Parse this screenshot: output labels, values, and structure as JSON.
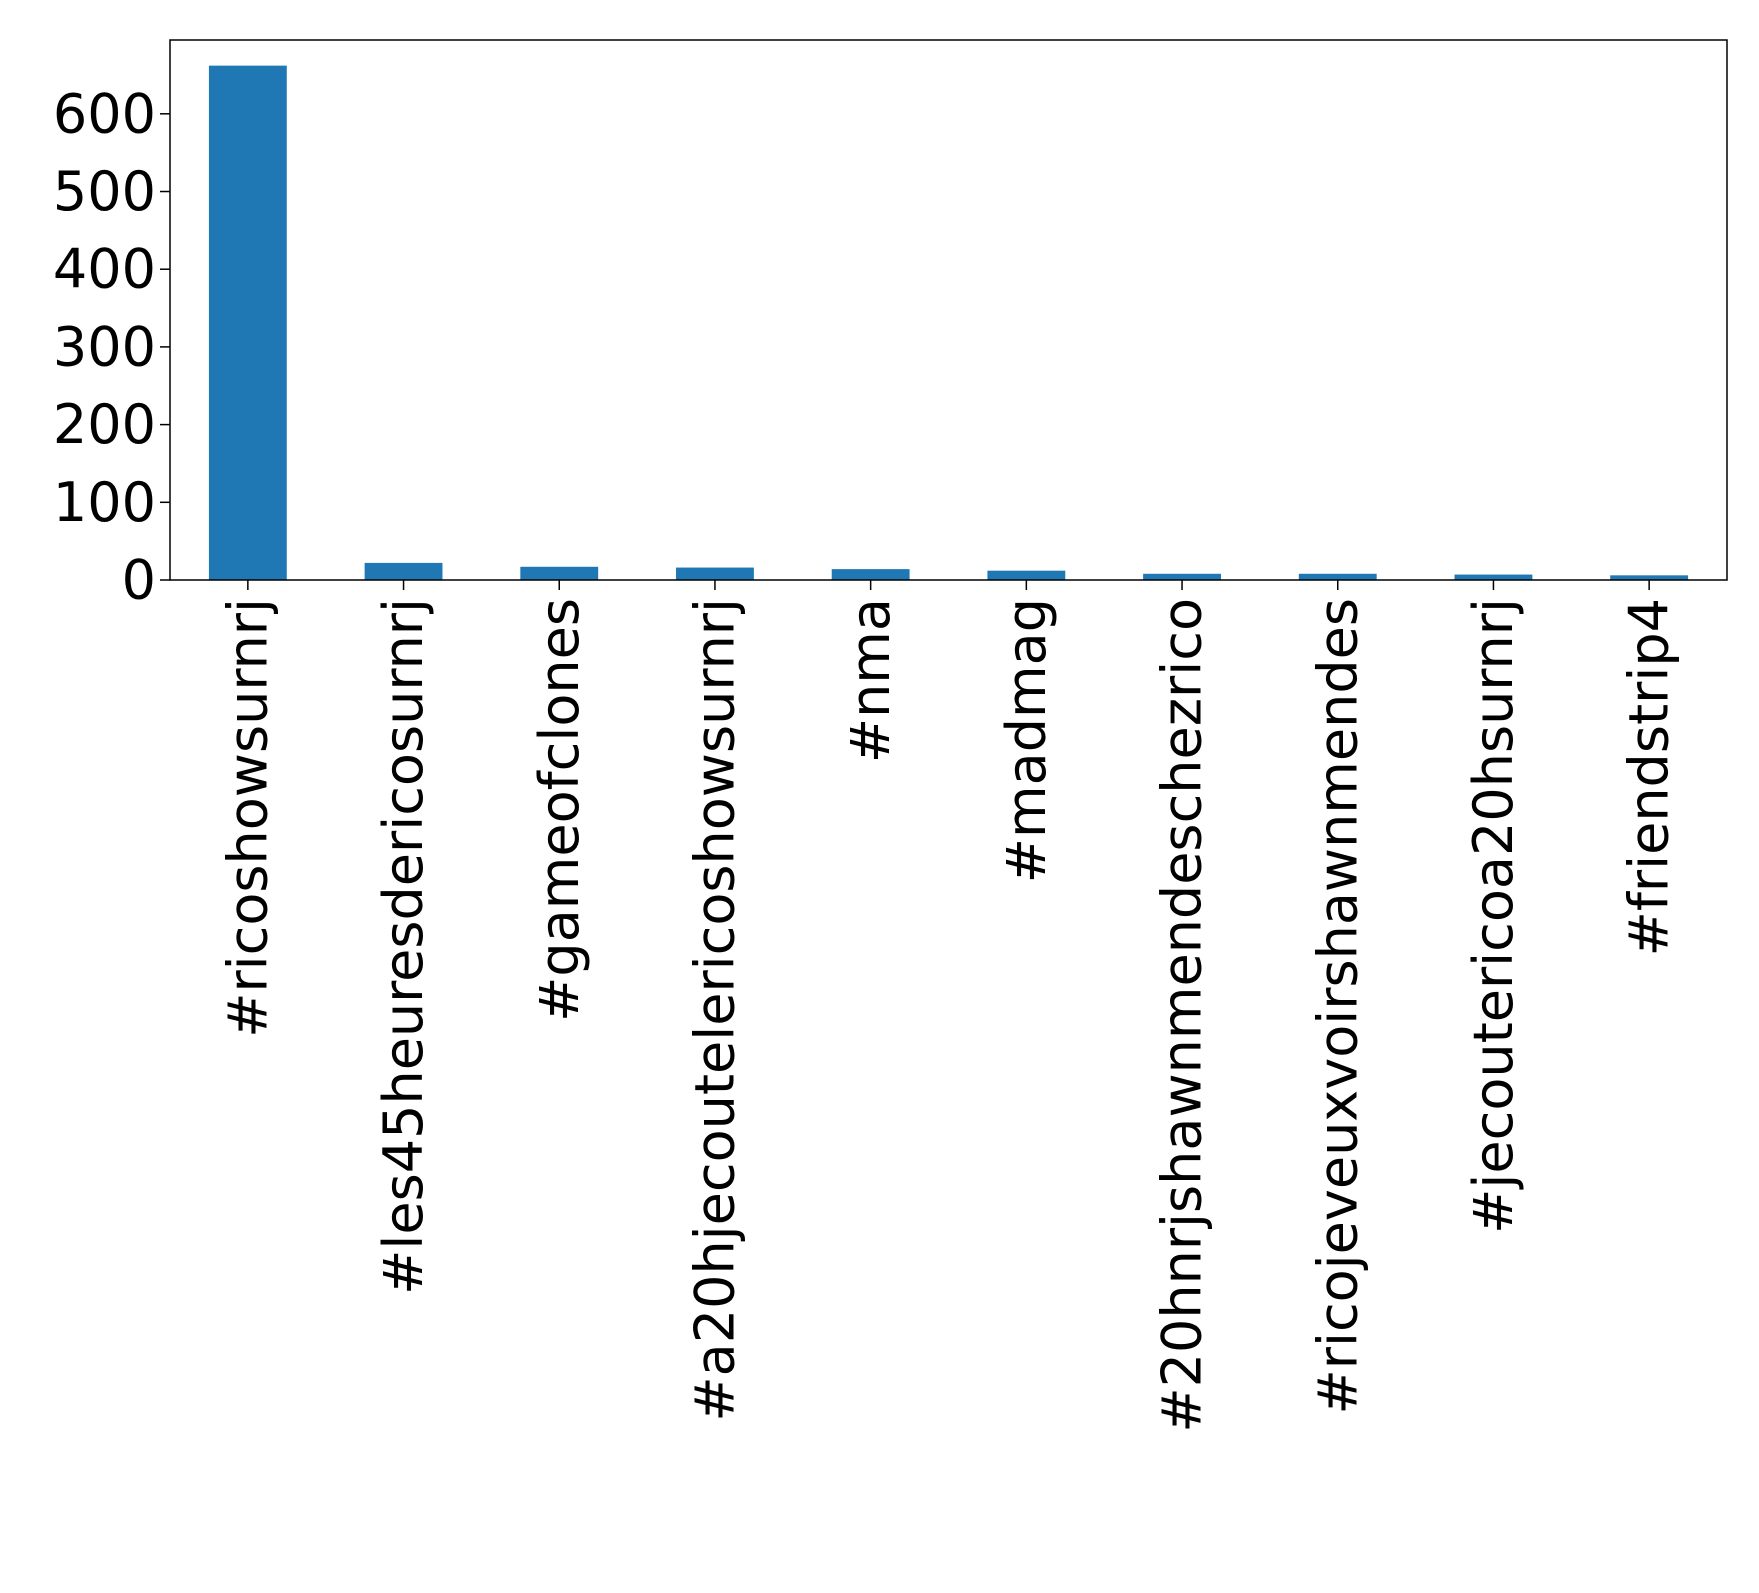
{
  "chart_data": {
    "type": "bar",
    "categories": [
      "#ricoshowsurnrj",
      "#les45heuresdericosurnrj",
      "#gameofclones",
      "#a20hjecoutelericoshowsurnrj",
      "#nma",
      "#madmag",
      "#20hnrjshawnmendeschezrico",
      "#ricojeveuxvoirshawnmendes",
      "#jecoutericoa20hsurnrj",
      "#friendstrip4"
    ],
    "values": [
      662,
      22,
      17,
      16,
      14,
      12,
      8,
      8,
      7,
      6
    ],
    "title": "",
    "xlabel": "",
    "ylabel": "",
    "ylim": [
      0,
      695
    ],
    "yticks": [
      0,
      100,
      200,
      300,
      400,
      500,
      600
    ],
    "ytick_labels": [
      "0",
      "100",
      "200",
      "300",
      "400",
      "500",
      "600"
    ],
    "bar_color": "#1f77b4",
    "grid": false,
    "legend": "none"
  }
}
